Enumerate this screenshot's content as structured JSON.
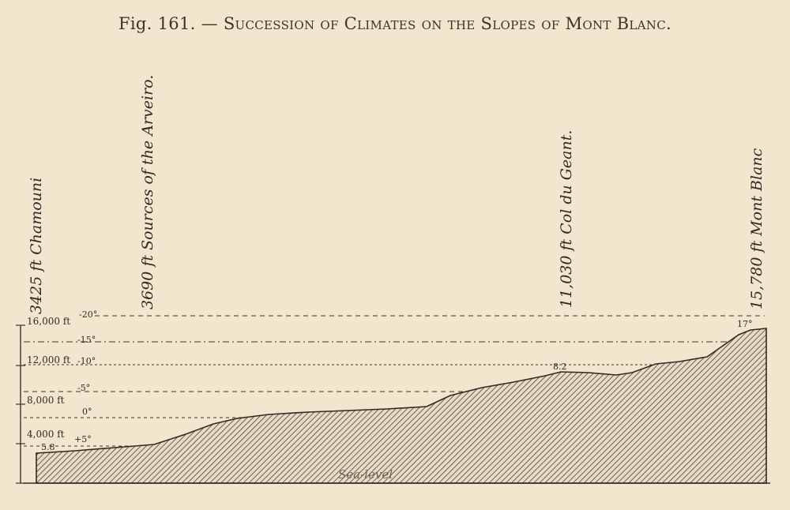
{
  "caption": {
    "fig_number": "Fig. 161.",
    "dash": " — ",
    "title": "Succession of Climates on the Slopes of Mont Blanc."
  },
  "stations": [
    {
      "label": "3425 ft Chamouni",
      "temperature": "5.8"
    },
    {
      "label": "3690 ft Sources of the Arveiro.",
      "temperature": ""
    },
    {
      "label": "11,030 ft Col du Geant.",
      "temperature": "8.2"
    },
    {
      "label": "15,780 ft Mont Blanc",
      "temperature": "17°"
    }
  ],
  "altitude_labels": [
    "16,000 ft",
    "12,000 ft",
    "8,000 ft",
    "4,000 ft"
  ],
  "isotherm_labels": [
    "-20°",
    "-15°",
    "-10°",
    "-5°",
    "0°",
    "+5°"
  ],
  "sea_level_label": "Sea-level",
  "colors": {
    "paper": "#f3e6cf",
    "ink": "#2f2a22",
    "hatch": "#4a4338"
  }
}
